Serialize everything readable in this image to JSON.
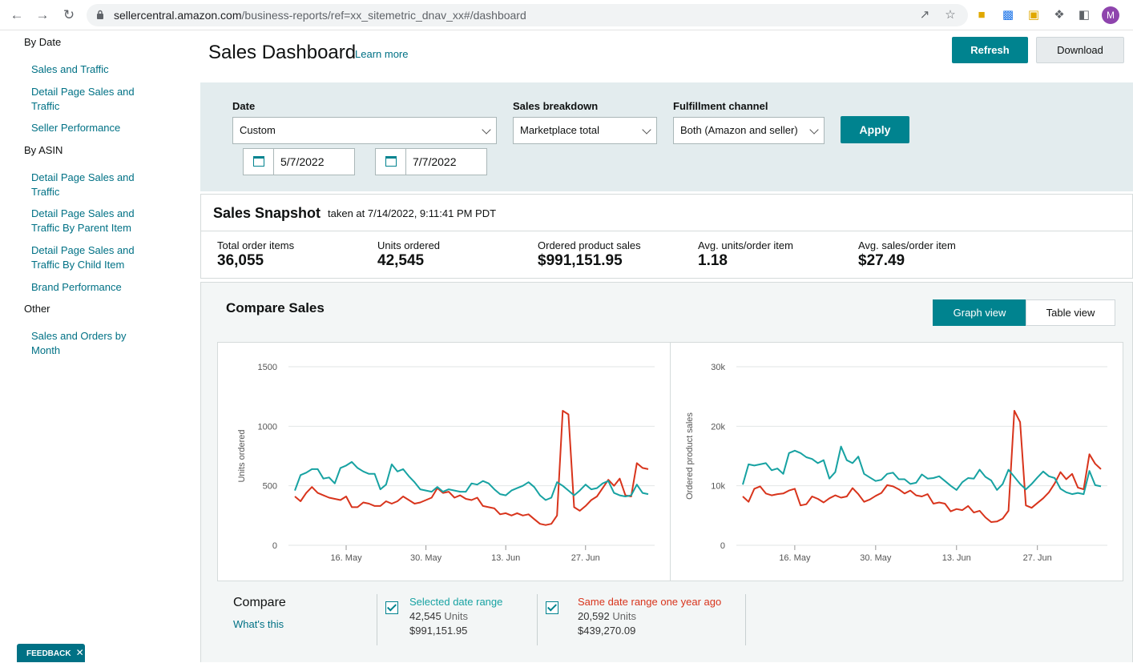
{
  "browser": {
    "url_host": "sellercentral.amazon.com",
    "url_path": "/business-reports/ref=xx_sitemetric_dnav_xx#/dashboard",
    "profile_initial": "M"
  },
  "sidebar": {
    "by_date_heading": "By Date",
    "by_date_items": [
      "Sales and Traffic",
      "Detail Page Sales and Traffic",
      "Seller Performance"
    ],
    "by_asin_heading": "By ASIN",
    "by_asin_items": [
      "Detail Page Sales and Traffic",
      "Detail Page Sales and Traffic By Parent Item",
      "Detail Page Sales and Traffic By Child Item",
      "Brand Performance"
    ],
    "other_heading": "Other",
    "other_items": [
      "Sales and Orders by Month"
    ],
    "feedback_label": "FEEDBACK"
  },
  "header": {
    "title": "Sales Dashboard",
    "learn_more": "Learn more",
    "refresh_label": "Refresh",
    "download_label": "Download"
  },
  "filters": {
    "date_label": "Date",
    "date_value": "Custom",
    "start_date": "5/7/2022",
    "end_date": "7/7/2022",
    "breakdown_label": "Sales breakdown",
    "breakdown_value": "Marketplace total",
    "channel_label": "Fulfillment channel",
    "channel_value": "Both (Amazon and seller)",
    "apply_label": "Apply"
  },
  "snapshot": {
    "title": "Sales Snapshot",
    "taken_at": "taken at 7/14/2022, 9:11:41 PM PDT",
    "metrics": [
      {
        "label": "Total order items",
        "value": "36,055"
      },
      {
        "label": "Units ordered",
        "value": "42,545"
      },
      {
        "label": "Ordered product sales",
        "value": "$991,151.95"
      },
      {
        "label": "Avg. units/order item",
        "value": "1.18"
      },
      {
        "label": "Avg. sales/order item",
        "value": "$27.49"
      }
    ]
  },
  "compare": {
    "title": "Compare Sales",
    "graph_view": "Graph view",
    "table_view": "Table view",
    "legend_title": "Compare",
    "whats_this": "What's this",
    "selected": {
      "label": "Selected date range",
      "units": "42,545",
      "units_suffix": "Units",
      "sales": "$991,151.95"
    },
    "last_year": {
      "label": "Same date range one year ago",
      "units": "20,592",
      "units_suffix": "Units",
      "sales": "$439,270.09"
    },
    "colors": {
      "selected": "#17a2a2",
      "last_year": "#d8341c",
      "accent": "#00838f"
    }
  },
  "chart_data": [
    {
      "type": "line",
      "ylabel": "Units ordered",
      "ylim": [
        0,
        1500
      ],
      "yticks": [
        0,
        500,
        1000,
        1500
      ],
      "ytick_labels": [
        "0",
        "500",
        "1000",
        "1500"
      ],
      "xticks": [
        "16. May",
        "30. May",
        "13. Jun",
        "27. Jun"
      ],
      "xtick_index": [
        9,
        23,
        37,
        51
      ],
      "series": [
        {
          "values": [
            460,
            590,
            610,
            640,
            640,
            560,
            570,
            520,
            650,
            670,
            700,
            650,
            620,
            600,
            600,
            470,
            510,
            680,
            620,
            640,
            580,
            530,
            470,
            460,
            450,
            490,
            450,
            470,
            460,
            450,
            450,
            520,
            510,
            540,
            520,
            470,
            430,
            420,
            460,
            480,
            500,
            530,
            490,
            420,
            380,
            400,
            530,
            500,
            460,
            420,
            460,
            510,
            470,
            480,
            520,
            540,
            440,
            420,
            410,
            420,
            510,
            440,
            430
          ]
        },
        {
          "values": [
            410,
            370,
            440,
            490,
            440,
            420,
            400,
            390,
            380,
            410,
            320,
            320,
            360,
            350,
            330,
            330,
            370,
            350,
            370,
            410,
            380,
            350,
            360,
            380,
            400,
            480,
            440,
            450,
            400,
            420,
            390,
            380,
            400,
            330,
            320,
            310,
            260,
            270,
            250,
            270,
            250,
            260,
            220,
            180,
            170,
            180,
            250,
            1130,
            1100,
            320,
            290,
            330,
            380,
            410,
            480,
            550,
            500,
            560,
            420,
            410,
            690,
            650,
            640
          ]
        }
      ]
    },
    {
      "type": "line",
      "ylabel": "Ordered product sales",
      "ylim": [
        0,
        30000
      ],
      "yticks": [
        0,
        10000,
        20000,
        30000
      ],
      "ytick_labels": [
        "0",
        "10k",
        "20k",
        "30k"
      ],
      "xticks": [
        "16. May",
        "30. May",
        "13. Jun",
        "27. Jun"
      ],
      "xtick_index": [
        9,
        23,
        37,
        51
      ],
      "series": [
        {
          "values": [
            10200,
            13600,
            13400,
            13600,
            13800,
            12600,
            12900,
            12000,
            15500,
            15900,
            15500,
            14800,
            14500,
            13800,
            14300,
            11200,
            12300,
            16600,
            14300,
            13800,
            14900,
            12000,
            11400,
            10800,
            11000,
            12000,
            12200,
            11100,
            11100,
            10300,
            10500,
            11900,
            11200,
            11300,
            11600,
            10800,
            10000,
            9300,
            10600,
            11300,
            11200,
            12700,
            11500,
            10900,
            9300,
            10300,
            12700,
            11500,
            10300,
            9400,
            10300,
            11400,
            12400,
            11600,
            11300,
            9500,
            8900,
            8600,
            8800,
            8600,
            12500,
            10100,
            9900
          ]
        },
        {
          "values": [
            8200,
            7300,
            9500,
            9900,
            8700,
            8400,
            8600,
            8700,
            9200,
            9500,
            6700,
            6900,
            8200,
            7800,
            7200,
            7900,
            8400,
            8000,
            8200,
            9600,
            8600,
            7300,
            7700,
            8300,
            8800,
            10100,
            9900,
            9400,
            8700,
            9200,
            8400,
            8200,
            8600,
            7000,
            7200,
            7000,
            5700,
            6100,
            5900,
            6600,
            5500,
            5800,
            4700,
            3900,
            4000,
            4500,
            5800,
            22600,
            20700,
            6700,
            6300,
            7100,
            7900,
            8900,
            10400,
            12300,
            11100,
            12000,
            9700,
            9400,
            15300,
            13700,
            12800
          ]
        }
      ]
    }
  ]
}
